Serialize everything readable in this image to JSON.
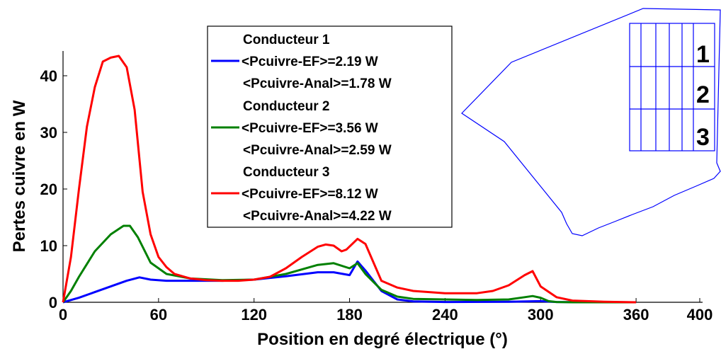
{
  "chart_data": {
    "type": "line",
    "xlabel": "Position en degré électrique (°)",
    "ylabel": "Pertes cuivre en W",
    "xlim": [
      0,
      400
    ],
    "ylim": [
      0,
      45
    ],
    "xticks": [
      "0",
      "60",
      "120",
      "180",
      "240",
      "300",
      "360",
      "400"
    ],
    "yticks": [
      "0",
      "10",
      "20",
      "30",
      "40"
    ],
    "grid": false,
    "legend_position": "top-center",
    "legend": [
      {
        "title": "Conducteur 1",
        "line_label": "<Pcuivre-EF>=2.19 W",
        "extra": "<Pcuivre-Anal>=1.78 W",
        "color": "#0000ff"
      },
      {
        "title": "Conducteur 2",
        "line_label": "<Pcuivre-EF>=3.56 W",
        "extra": "<Pcuivre-Anal>=2.59 W",
        "color": "#008000"
      },
      {
        "title": "Conducteur 3",
        "line_label": "<Pcuivre-EF>=8.12 W",
        "extra": "<Pcuivre-Anal>=4.22 W",
        "color": "#ff0000"
      }
    ],
    "series": [
      {
        "color": "#0000ff",
        "x": [
          0,
          10,
          20,
          30,
          40,
          48,
          55,
          65,
          80,
          100,
          120,
          140,
          160,
          170,
          180,
          185,
          190,
          200,
          210,
          220,
          240,
          280,
          300,
          310,
          360
        ],
        "y": [
          0,
          0.8,
          1.8,
          2.8,
          3.8,
          4.4,
          4.0,
          3.8,
          3.8,
          3.8,
          4.0,
          4.6,
          5.3,
          5.3,
          4.8,
          7.2,
          5.6,
          2.0,
          0.5,
          0.15,
          0.05,
          0.1,
          0.2,
          0.05,
          0
        ]
      },
      {
        "color": "#008000",
        "x": [
          0,
          5,
          10,
          20,
          30,
          38,
          42,
          47,
          55,
          65,
          80,
          100,
          120,
          140,
          160,
          170,
          180,
          185,
          190,
          200,
          210,
          220,
          240,
          260,
          280,
          290,
          295,
          300,
          305,
          310,
          320,
          360
        ],
        "y": [
          0,
          2,
          4.5,
          9,
          12,
          13.5,
          13.5,
          11.5,
          7,
          5,
          4.2,
          3.9,
          4.0,
          5.0,
          6.6,
          6.9,
          6.0,
          6.9,
          5.0,
          2.2,
          1.0,
          0.6,
          0.5,
          0.4,
          0.5,
          0.9,
          1.1,
          0.8,
          0.2,
          0.05,
          0,
          0
        ]
      },
      {
        "color": "#ff0000",
        "x": [
          0,
          5,
          10,
          15,
          20,
          25,
          30,
          35,
          40,
          45,
          50,
          55,
          60,
          65,
          70,
          80,
          90,
          100,
          110,
          120,
          130,
          140,
          150,
          160,
          165,
          170,
          175,
          178,
          185,
          190,
          200,
          210,
          220,
          240,
          260,
          270,
          280,
          290,
          295,
          300,
          310,
          320,
          340,
          360
        ],
        "y": [
          0,
          8,
          20,
          31,
          38,
          42.5,
          43.2,
          43.5,
          41.5,
          34,
          19.5,
          12,
          8,
          6.2,
          5.0,
          4.2,
          3.9,
          3.8,
          3.8,
          4.0,
          4.5,
          6.0,
          8.0,
          9.8,
          10.2,
          10.0,
          9.0,
          9.3,
          11.2,
          10.3,
          3.8,
          2.6,
          2.0,
          1.6,
          1.6,
          2.0,
          3.0,
          4.8,
          5.5,
          2.8,
          0.9,
          0.3,
          0.1,
          0
        ]
      }
    ]
  },
  "inset": {
    "slot_labels": [
      "1",
      "2",
      "3"
    ],
    "outline_color": "#0000ff"
  }
}
